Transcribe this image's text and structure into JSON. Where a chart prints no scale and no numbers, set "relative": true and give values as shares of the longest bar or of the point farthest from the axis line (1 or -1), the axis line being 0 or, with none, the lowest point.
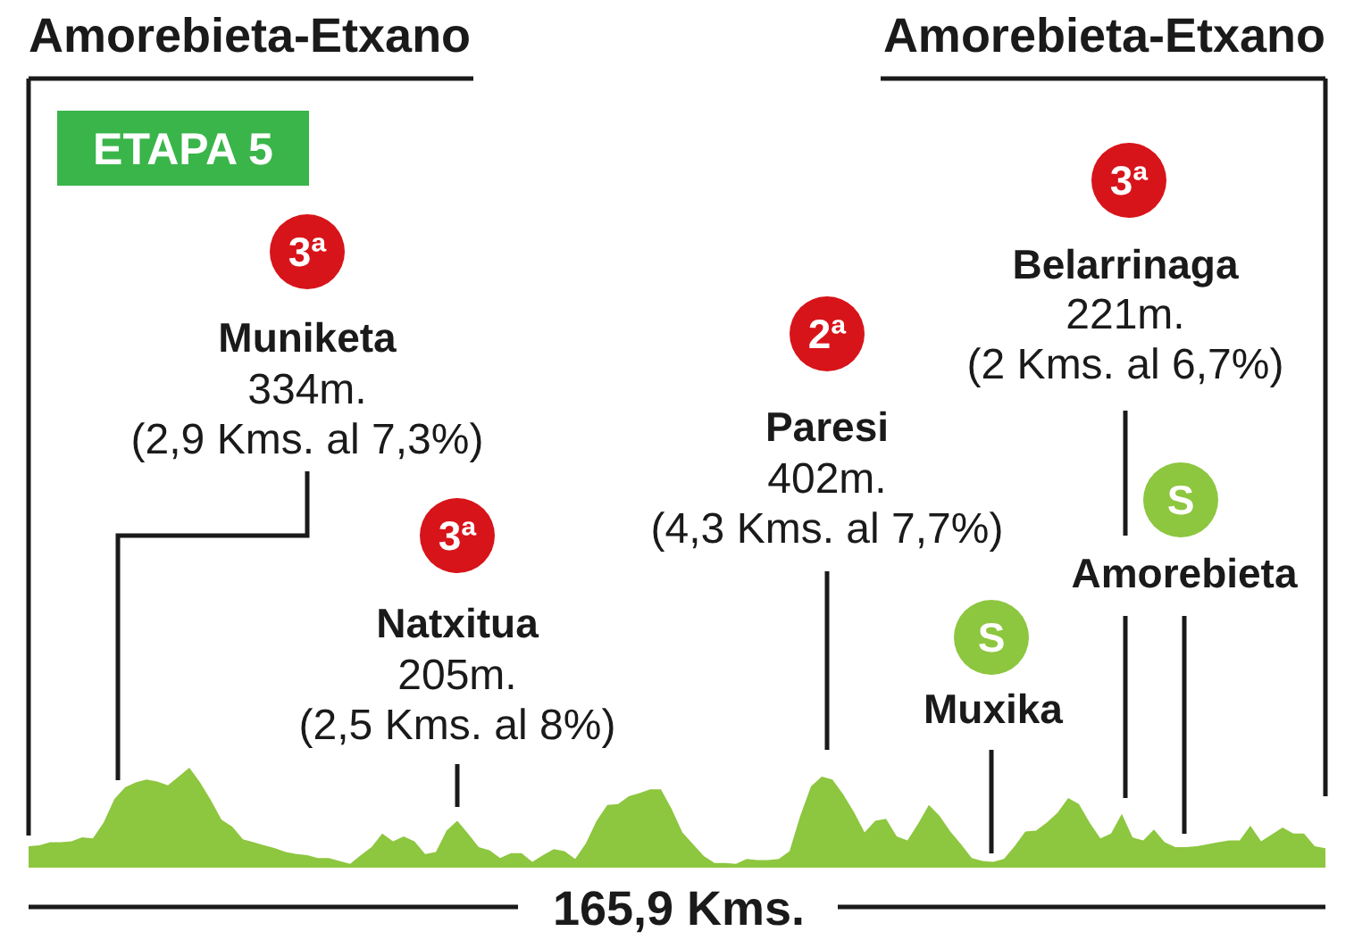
{
  "chart_data": {
    "type": "area",
    "title": "ETAPA 5",
    "xlabel": "165,9 Kms.",
    "categories": [
      null,
      null,
      null,
      null,
      null,
      null,
      null,
      null,
      null,
      null,
      null,
      null,
      null,
      null,
      null,
      null,
      null,
      null,
      null,
      null,
      null,
      null,
      null,
      null,
      null,
      null,
      null,
      null,
      null,
      null,
      null,
      null,
      null,
      null,
      null,
      null,
      null,
      null,
      null,
      null,
      null,
      null,
      null,
      null,
      null,
      null,
      null,
      null,
      null,
      null,
      null,
      null,
      null,
      null,
      null,
      null,
      null,
      null,
      null,
      null,
      null,
      null,
      null,
      null,
      null,
      null,
      null,
      null,
      null,
      null,
      null,
      null,
      null,
      null,
      null,
      null,
      null,
      null,
      null,
      null,
      null,
      null,
      null,
      null,
      null,
      null,
      null,
      null,
      null,
      null,
      null,
      null,
      null,
      null,
      null,
      null,
      null,
      null,
      null,
      null,
      null,
      null,
      null,
      null,
      null,
      null,
      null,
      null,
      null,
      null,
      null,
      null,
      null,
      null,
      null,
      null,
      null,
      null,
      null,
      null,
      null,
      null
    ],
    "values": [
      0.2,
      0.21,
      0.24,
      0.24,
      0.25,
      0.29,
      0.28,
      0.44,
      0.68,
      0.8,
      0.85,
      0.88,
      0.86,
      0.82,
      0.91,
      1,
      0.85,
      0.67,
      0.47,
      0.4,
      0.27,
      0.24,
      0.21,
      0.18,
      0.14,
      0.12,
      0.11,
      0.08,
      0.08,
      0.05,
      0.02,
      0.11,
      0.19,
      0.33,
      0.25,
      0.3,
      0.25,
      0.12,
      0.14,
      0.36,
      0.46,
      0.33,
      0.19,
      0.16,
      0.08,
      0.13,
      0.13,
      0.04,
      0.11,
      0.17,
      0.15,
      0.07,
      0.23,
      0.46,
      0.62,
      0.63,
      0.71,
      0.74,
      0.78,
      0.78,
      0.58,
      0.34,
      0.22,
      0.1,
      0.03,
      0.03,
      0.02,
      0.07,
      0.06,
      0.06,
      0.07,
      0.15,
      0.51,
      0.81,
      0.91,
      0.88,
      0.73,
      0.55,
      0.34,
      0.46,
      0.48,
      0.3,
      0.26,
      0.43,
      0.62,
      0.51,
      0.35,
      0.22,
      0.08,
      0.05,
      0.04,
      0.07,
      0.2,
      0.35,
      0.36,
      0.44,
      0.54,
      0.69,
      0.63,
      0.44,
      0.28,
      0.33,
      0.53,
      0.29,
      0.26,
      0.37,
      0.24,
      0.19,
      0.19,
      0.2,
      0.22,
      0.24,
      0.26,
      0.26,
      0.41,
      0.25,
      0.32,
      0.39,
      0.33,
      0.33,
      0.2,
      0.18
    ],
    "color": "#8dc63f",
    "relative": true,
    "annotations": [
      "Amorebieta-Etxano",
      "Amorebieta-Etxano",
      "3ª",
      "Muniketa",
      "334m.",
      "(2,9 Kms. al 7,3%)",
      "3ª",
      "Natxitua",
      "205m.",
      "(2,5 Kms. al 8%)",
      "2ª",
      "Paresi",
      "402m.",
      "(4,3 Kms. al 7,7%)",
      "3ª",
      "Belarrinaga",
      "221m.",
      "(2 Kms. al 6,7%)",
      "S",
      "Muxika",
      "S",
      "Amorebieta"
    ]
  }
}
